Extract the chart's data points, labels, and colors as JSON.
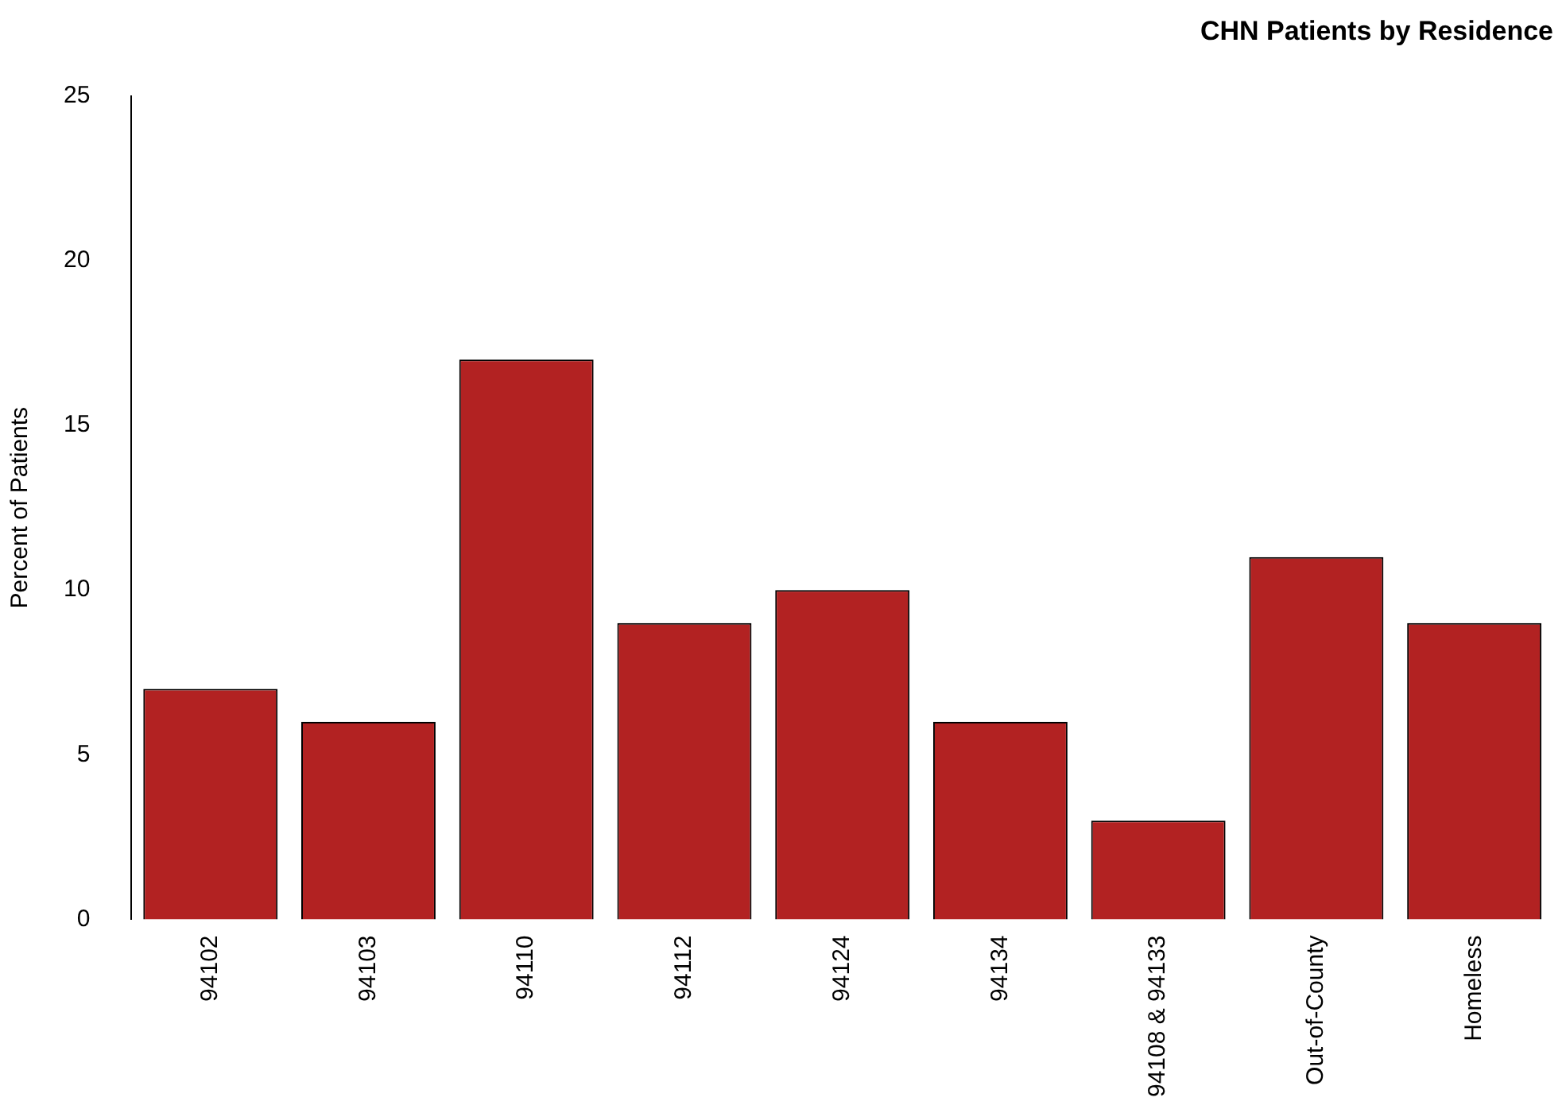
{
  "chart_data": {
    "type": "bar",
    "title": "CHN Patients by Residence",
    "ylabel": "Percent of Patients",
    "categories": [
      "94102",
      "94103",
      "94110",
      "94112",
      "94124",
      "94134",
      "94108 & 94133",
      "Out-of-County",
      "Homeless"
    ],
    "values": [
      7,
      6,
      17,
      9,
      10,
      6,
      3,
      11,
      9
    ],
    "color": "#b22222",
    "ylim": [
      0,
      25
    ],
    "yticks": [
      0,
      5,
      10,
      15,
      20,
      25
    ],
    "grid": false,
    "legend": false
  }
}
